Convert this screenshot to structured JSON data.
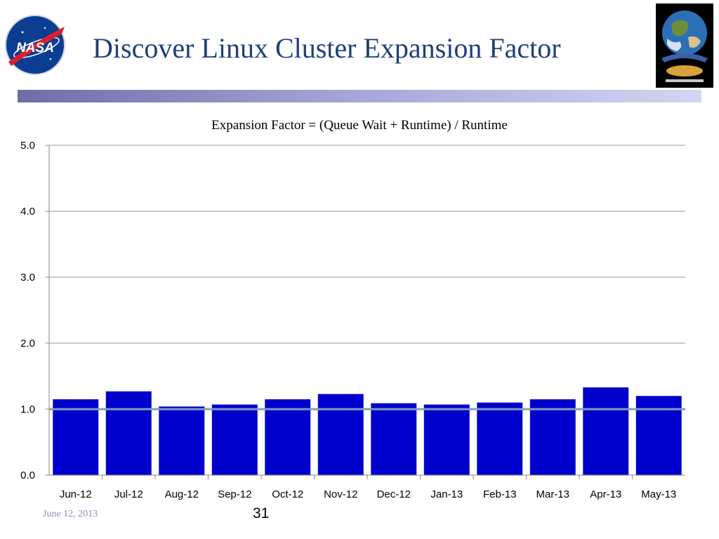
{
  "slide": {
    "title": "Discover Linux Cluster Expansion Factor",
    "footer_date": "June 12, 2013",
    "page_number": "31"
  },
  "logos": {
    "left": {
      "text": "NASA",
      "icon": "nasa-meatball-icon"
    },
    "right": {
      "icon": "nccs-earth-logo-icon"
    }
  },
  "colors": {
    "title": "#1f3f7a",
    "bar": "#0000cc",
    "reference_line": "#7f9fbf",
    "grid": "#999999"
  },
  "chart_data": {
    "type": "bar",
    "title": "Expansion Factor = (Queue Wait + Runtime) / Runtime",
    "categories": [
      "Jun-12",
      "Jul-12",
      "Aug-12",
      "Sep-12",
      "Oct-12",
      "Nov-12",
      "Dec-12",
      "Jan-13",
      "Feb-13",
      "Mar-13",
      "Apr-13",
      "May-13"
    ],
    "values": [
      1.15,
      1.27,
      1.04,
      1.07,
      1.15,
      1.23,
      1.09,
      1.07,
      1.1,
      1.15,
      1.33,
      1.2
    ],
    "yticks": [
      "0.0",
      "1.0",
      "2.0",
      "3.0",
      "4.0",
      "5.0"
    ],
    "ylim": [
      0,
      5
    ],
    "reference_line": 1.0,
    "grid": true,
    "legend": "none"
  }
}
